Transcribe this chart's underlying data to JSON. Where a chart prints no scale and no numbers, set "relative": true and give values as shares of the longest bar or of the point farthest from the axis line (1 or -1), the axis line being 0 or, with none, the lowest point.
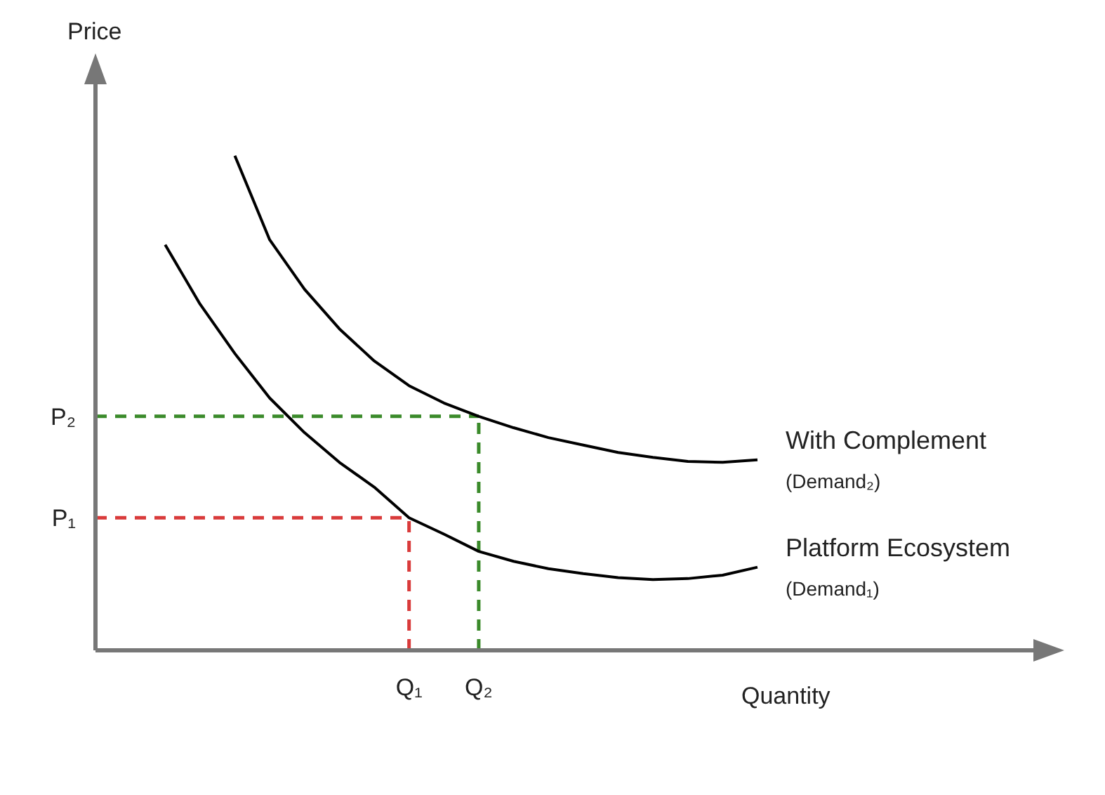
{
  "chart_data": {
    "type": "line",
    "relative": true,
    "ylabel": "Price",
    "xlabel": "Quantity",
    "marker": "none",
    "categories": [
      null,
      null,
      null,
      null,
      null,
      null,
      null,
      null,
      null,
      "Q₁",
      null,
      "Q₂",
      null,
      null,
      null,
      null,
      null,
      null,
      null,
      null,
      null,
      null,
      null,
      null,
      null,
      null,
      null,
      null
    ],
    "series": [
      {
        "name": "With Complement",
        "color": "#000000",
        "values": [
          null,
          null,
          null,
          null,
          1.0,
          0.83,
          0.73,
          0.65,
          0.585,
          0.535,
          0.5,
          0.473,
          0.45,
          0.43,
          0.415,
          0.4,
          0.39,
          0.382,
          0.38,
          0.385,
          null,
          null,
          null,
          null,
          null,
          null,
          null,
          null
        ]
      },
      {
        "name": "Platform Ecosystem",
        "color": "#000000",
        "values": [
          null,
          null,
          0.82,
          0.7,
          0.6,
          0.51,
          0.44,
          0.38,
          0.33,
          0.268,
          0.235,
          0.2,
          0.18,
          0.165,
          0.155,
          0.147,
          0.143,
          0.145,
          0.152,
          0.168,
          null,
          null,
          null,
          null,
          null,
          null,
          null,
          null
        ]
      }
    ],
    "ref_lines": [
      {
        "axis": "y",
        "value": 0.473,
        "label": "P₂",
        "color": "#3a8a2a",
        "line_style": "dashed"
      },
      {
        "axis": "x",
        "value": "Q₂",
        "color": "#3a8a2a",
        "line_style": "dashed"
      },
      {
        "axis": "y",
        "value": 0.268,
        "label": "P₁",
        "color": "#d93a3a",
        "line_style": "dashed"
      },
      {
        "axis": "x",
        "value": "Q₁",
        "color": "#d93a3a",
        "line_style": "dashed"
      }
    ],
    "annotations": [
      "(Demand₂)",
      "(Demand₁)"
    ]
  }
}
